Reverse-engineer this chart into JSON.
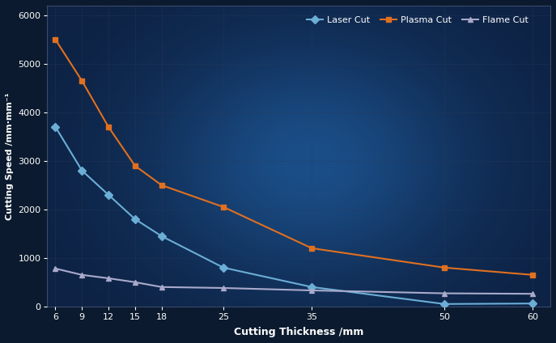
{
  "x": [
    6,
    9,
    12,
    15,
    18,
    25,
    35,
    50,
    60
  ],
  "laser_cut": [
    3700,
    2800,
    2300,
    1800,
    1450,
    800,
    400,
    50,
    60
  ],
  "plasma_cut": [
    5500,
    4650,
    3700,
    2900,
    2500,
    2050,
    1200,
    800,
    650
  ],
  "flame_cut": [
    780,
    650,
    580,
    500,
    400,
    380,
    330,
    270,
    260
  ],
  "laser_color": "#6baed6",
  "plasma_color": "#e07020",
  "flame_color": "#aaaacc",
  "xlabel": "Cutting Thickness /mm",
  "ylabel": "Cutting Speed /mm·mm⁻¹",
  "ylim": [
    0,
    6200
  ],
  "yticks": [
    0,
    1000,
    2000,
    3000,
    4000,
    5000,
    6000
  ],
  "xticks": [
    6,
    9,
    12,
    15,
    18,
    25,
    35,
    50,
    60
  ],
  "legend_labels": [
    "Laser Cut",
    "Plasma Cut",
    "Flame Cut"
  ],
  "bg_color_outer": "#0b1a2e",
  "bg_color_inner": "#0d2244",
  "glow_color": "#1a6090",
  "marker_size": 5,
  "linewidth": 1.5
}
